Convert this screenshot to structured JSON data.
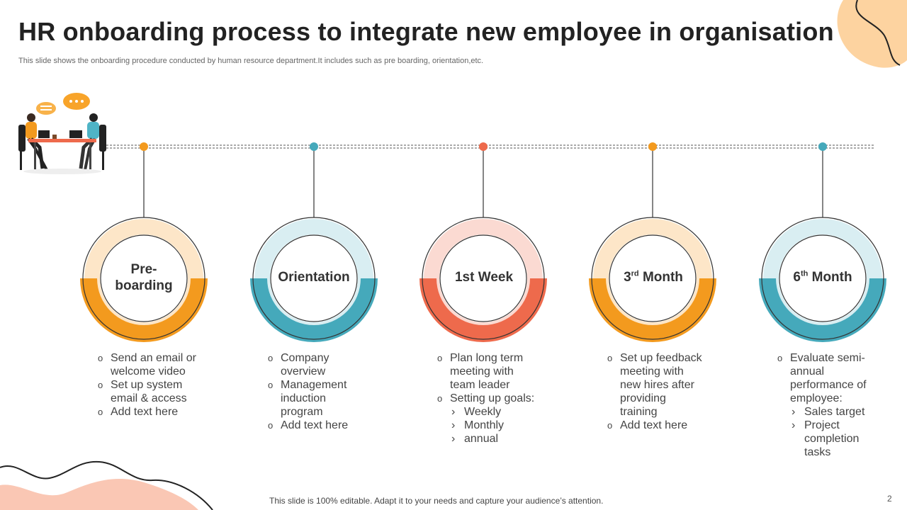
{
  "title": "HR onboarding process to integrate new employee in organisation",
  "subtitle": "This slide shows the onboarding procedure conducted by human resource department.It includes such as pre boarding, orientation,etc.",
  "footer": "This slide is 100% editable. Adapt it to your needs and capture your audience’s attention.",
  "page_number": "2",
  "colors": {
    "orange": "#F39A1E",
    "teal": "#45A9BB",
    "coral": "#EE6A4C",
    "light_orange": "#FDE6C8",
    "light_teal": "#D9EEF2",
    "light_coral": "#FBDAD2"
  },
  "steps": [
    {
      "label_line1": "Pre-",
      "label_line2": "boarding",
      "color": "orange",
      "bullets": [
        {
          "text": "Send an email or welcome video",
          "level": 1
        },
        {
          "text": "Set up system email & access",
          "level": 1
        },
        {
          "text": "Add text here",
          "level": 1
        }
      ]
    },
    {
      "label_line1": "Orientation",
      "color": "teal",
      "bullets": [
        {
          "text": "Company overview",
          "level": 1
        },
        {
          "text": "Management induction program",
          "level": 1
        },
        {
          "text": "Add text here",
          "level": 1
        }
      ]
    },
    {
      "label_line1": "1st Week",
      "color": "coral",
      "bullets": [
        {
          "text": "Plan long term meeting with team leader",
          "level": 1
        },
        {
          "text": "Setting up goals:",
          "level": 1
        },
        {
          "text": "Weekly",
          "level": 2
        },
        {
          "text": "Monthly",
          "level": 2
        },
        {
          "text": "annual",
          "level": 2
        }
      ]
    },
    {
      "label_num": "3",
      "label_sup": "rd",
      "label_word": "Month",
      "color": "orange",
      "bullets": [
        {
          "text": "Set up feedback meeting with new hires after providing training",
          "level": 1
        },
        {
          "text": "Add text here",
          "level": 1
        }
      ]
    },
    {
      "label_num": "6",
      "label_sup": "th",
      "label_word": "Month",
      "color": "teal",
      "bullets": [
        {
          "text": "Evaluate semi-annual performance of employee:",
          "level": 1
        },
        {
          "text": "Sales target",
          "level": 2
        },
        {
          "text": "Project completion tasks",
          "level": 2
        }
      ]
    }
  ]
}
